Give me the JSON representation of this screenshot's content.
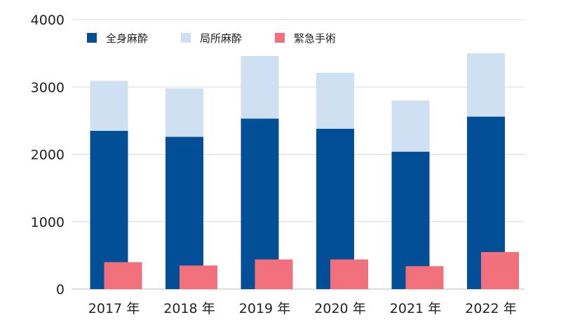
{
  "chart_data": {
    "type": "bar",
    "categories": [
      "2017 年",
      "2018 年",
      "2019 年",
      "2020 年",
      "2021 年",
      "2022 年"
    ],
    "series": [
      {
        "name": "全身麻酔",
        "stack": "main",
        "color": "#034f97",
        "values": [
          2350,
          2260,
          2530,
          2380,
          2040,
          2560
        ]
      },
      {
        "name": "局所麻酔",
        "stack": "main",
        "color": "#cfe0f3",
        "values": [
          740,
          720,
          930,
          830,
          760,
          940
        ]
      },
      {
        "name": "緊急手術",
        "stack": "emergency",
        "color": "#f2707b",
        "values": [
          400,
          350,
          440,
          440,
          340,
          550
        ]
      }
    ],
    "ylim": [
      0,
      4000
    ],
    "yticks": [
      0,
      1000,
      2000,
      3000,
      4000
    ],
    "grid": true,
    "legend_position": "top-left",
    "title": "",
    "xlabel": "",
    "ylabel": ""
  }
}
